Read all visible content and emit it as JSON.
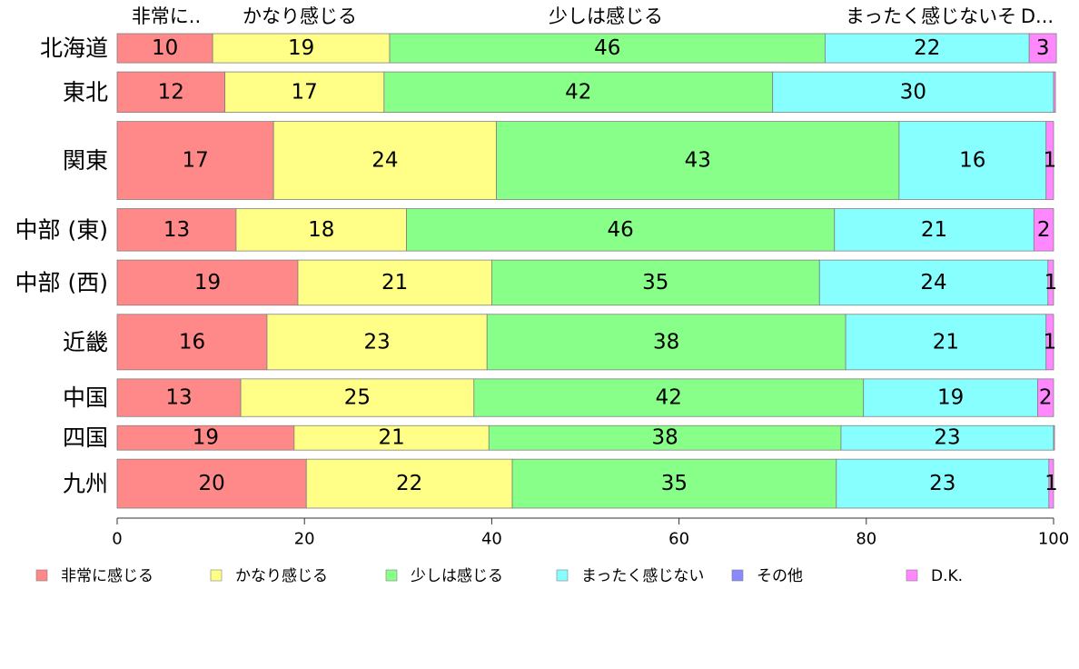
{
  "chart_data": {
    "type": "bar",
    "orientation": "horizontal",
    "stacked": true,
    "top_labels": [
      "非常に..",
      "かなり感じる",
      "少しは感じる",
      "まったく感じないそ",
      "D..."
    ],
    "categories": [
      "北海道",
      "東北",
      "関東",
      "中部 (東)",
      "中部 (西)",
      "近畿",
      "中国",
      "四国",
      "九州"
    ],
    "category_weights": [
      0.62,
      0.86,
      1.66,
      0.9,
      0.96,
      1.18,
      0.8,
      0.52,
      1.04
    ],
    "series": [
      {
        "name": "非常に感じる",
        "color": "#ff8888",
        "values": [
          10.2,
          11.5,
          16.7,
          12.7,
          19.3,
          16.0,
          13.2,
          18.9,
          20.2
        ]
      },
      {
        "name": "かなり感じる",
        "color": "#ffff88",
        "values": [
          18.9,
          17.0,
          23.8,
          18.2,
          20.7,
          23.5,
          24.9,
          20.8,
          22.0
        ]
      },
      {
        "name": "少しは感じる",
        "color": "#88ff88",
        "values": [
          46.5,
          41.5,
          43.0,
          45.7,
          35.0,
          38.3,
          41.6,
          37.6,
          34.6
        ]
      },
      {
        "name": "まったく感じない",
        "color": "#88ffff",
        "values": [
          21.8,
          30.0,
          15.7,
          21.3,
          24.4,
          21.4,
          18.6,
          22.7,
          22.7
        ]
      },
      {
        "name": "その他",
        "color": "#8888ff",
        "values": [
          0,
          0,
          0,
          0,
          0,
          0,
          0,
          0,
          0
        ]
      },
      {
        "name": "D.K.",
        "color": "#ff88ff",
        "values": [
          2.9,
          0.2,
          0.8,
          2.1,
          0.6,
          0.8,
          1.7,
          0.1,
          0.5
        ]
      }
    ],
    "data_labels": [
      [
        "10",
        "19",
        "46",
        "22",
        "",
        "3"
      ],
      [
        "12",
        "17",
        "42",
        "30",
        "",
        ""
      ],
      [
        "17",
        "24",
        "43",
        "16",
        "",
        "1"
      ],
      [
        "13",
        "18",
        "46",
        "21",
        "",
        "2"
      ],
      [
        "19",
        "21",
        "35",
        "24",
        "",
        "1"
      ],
      [
        "16",
        "23",
        "38",
        "21",
        "",
        "1"
      ],
      [
        "13",
        "25",
        "42",
        "19",
        "",
        "2"
      ],
      [
        "19",
        "21",
        "38",
        "23",
        "",
        ""
      ],
      [
        "20",
        "22",
        "35",
        "23",
        "",
        "1"
      ]
    ],
    "xlim": [
      0,
      100
    ],
    "xticks": [
      0,
      20,
      40,
      60,
      80,
      100
    ],
    "legend_position": "bottom"
  }
}
